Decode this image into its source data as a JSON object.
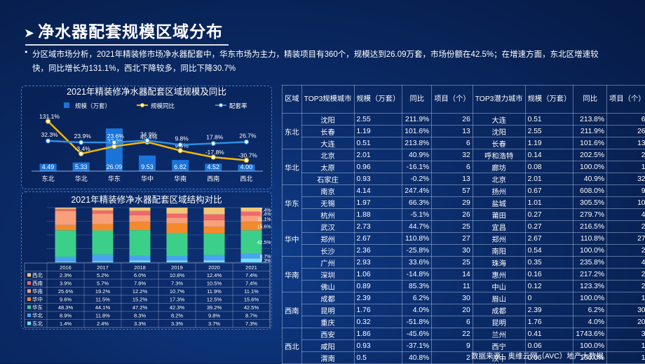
{
  "title": "净水器配套规模区域分布",
  "summary": "分区域市场分析，2021年精装修市场净水器配套中，华东市场为主力，精装项目有360个，规模达到26.09万套，市场份额在42.5%；在增速方面，东北区增速较快，同比增长为131.1%，西北下降较多，同比下降30.7%",
  "source": "数据来源：奥维云网（AVC）地产大数据",
  "chart_data": [
    {
      "type": "bar",
      "title": "2021年精装修净水器配套区域规模及同比",
      "legend": [
        "规模（万套）",
        "规模同比",
        "配套率"
      ],
      "legend_position": "top",
      "categories": [
        "东北",
        "华北",
        "华东",
        "华中",
        "华南",
        "西南",
        "西北"
      ],
      "series": [
        {
          "name": "规模（万套）",
          "type": "bar",
          "values": [
            4.49,
            5.33,
            26.09,
            9.53,
            6.82,
            4.52,
            4.0
          ],
          "labels": [
            "4.49",
            "5.33",
            "26.09",
            "9.53",
            "6.82",
            "4.52",
            "4.00"
          ],
          "color": "#1a73d9"
        },
        {
          "name": "规模同比",
          "type": "line",
          "values": [
            131.1,
            -3.4,
            27.2,
            45.4,
            9.5,
            -17.8,
            -30.7
          ],
          "labels": [
            "131.1%",
            "-3.4%",
            "27.2%",
            "45.4%",
            "9.5%",
            "-17.8%",
            "-30.7%"
          ],
          "color": "#f5b800"
        },
        {
          "name": "配套率",
          "type": "line",
          "values": [
            32.3,
            23.9,
            23.6,
            34.9,
            9.8,
            17.8,
            26.7
          ],
          "labels": [
            "32.3%",
            "23.9%",
            "23.6%",
            "34.9%",
            "9.8%",
            "17.8%",
            "26.7%"
          ],
          "color": "#2f8fe0"
        }
      ]
    },
    {
      "type": "bar",
      "stacked": "percent",
      "title": "2021年精装修净水器配套区域结构对比",
      "categories": [
        "2016",
        "2017",
        "2018",
        "2019",
        "2020",
        "2021"
      ],
      "series": [
        {
          "name": "西北",
          "color": "#f0c77a",
          "values": [
            2.3,
            5.2,
            6.0,
            10.8,
            12.4,
            7.4
          ],
          "labels": [
            "2.3%",
            "5.2%",
            "6.0%",
            "10.8%",
            "12.4%",
            "7.4%"
          ]
        },
        {
          "name": "西南",
          "color": "#f06a6a",
          "values": [
            3.9,
            5.7,
            7.8,
            7.3,
            10.5,
            7.4
          ],
          "labels": [
            "3.9%",
            "5.7%",
            "7.8%",
            "7.3%",
            "10.5%",
            "7.4%"
          ]
        },
        {
          "name": "华南",
          "color": "#f7a07a",
          "values": [
            25.6,
            19.2,
            12.2,
            10.7,
            11.9,
            11.1
          ],
          "labels": [
            "25.6%",
            "19.2%",
            "12.2%",
            "10.7%",
            "11.9%",
            "11.1%"
          ]
        },
        {
          "name": "华中",
          "color": "#f58a2c",
          "values": [
            9.6,
            11.5,
            15.2,
            17.3,
            12.5,
            15.6
          ],
          "labels": [
            "9.6%",
            "11.5%",
            "15.2%",
            "17.3%",
            "12.5%",
            "15.6%"
          ]
        },
        {
          "name": "华东",
          "color": "#3ccf8a",
          "values": [
            48.3,
            44.1,
            47.2,
            42.3,
            39.2,
            42.5
          ],
          "labels": [
            "48.3%",
            "44.1%",
            "47.2%",
            "42.3%",
            "39.2%",
            "42.5%"
          ]
        },
        {
          "name": "华北",
          "color": "#4aa3f0",
          "values": [
            8.9,
            11.8,
            8.3,
            8.2,
            9.8,
            8.7
          ],
          "labels": [
            "8.9%",
            "11.8%",
            "8.3%",
            "8.2%",
            "9.8%",
            "8.7%"
          ]
        },
        {
          "name": "东北",
          "color": "#6fe0ff",
          "values": [
            1.4,
            2.4,
            3.3,
            3.3,
            3.7,
            7.3
          ],
          "labels": [
            "1.4%",
            "2.4%",
            "3.3%",
            "3.3%",
            "3.7%",
            "7.3%"
          ]
        }
      ],
      "bar_labels_2021": [
        "7.4%",
        "7.4%",
        "11.1%",
        "15.6%",
        "42.5%",
        "8.7%",
        "7.3%"
      ]
    },
    {
      "type": "table",
      "headers": [
        "区域",
        "TOP3规模城市",
        "规模（万套）",
        "同比",
        "项目（个）",
        "TOP3潜力城市",
        "规模（万套）",
        "同比",
        "项目（个）"
      ],
      "groups": [
        {
          "region": "东北",
          "rows": [
            [
              "沈阳",
              "2.55",
              "211.9%",
              "26",
              "大连",
              "0.51",
              "213.8%",
              "6"
            ],
            [
              "长春",
              "1.19",
              "101.6%",
              "13",
              "沈阳",
              "2.55",
              "211.9%",
              "26"
            ],
            [
              "大连",
              "0.51",
              "213.8%",
              "6",
              "长春",
              "1.19",
              "101.6%",
              "13"
            ]
          ]
        },
        {
          "region": "华北",
          "rows": [
            [
              "北京",
              "2.01",
              "40.9%",
              "32",
              "呼和浩特",
              "0.14",
              "202.5%",
              "2"
            ],
            [
              "太原",
              "0.96",
              "-16.1%",
              "6",
              "廊坊",
              "0.08",
              "100.0%",
              "1"
            ],
            [
              "石家庄",
              "0.93",
              "-0.2%",
              "13",
              "北京",
              "2.01",
              "40.9%",
              "32"
            ]
          ]
        },
        {
          "region": "华东",
          "rows": [
            [
              "南京",
              "4.14",
              "247.4%",
              "57",
              "扬州",
              "0.67",
              "608.0%",
              "9"
            ],
            [
              "无锡",
              "1.97",
              "66.3%",
              "29",
              "盐城",
              "1.01",
              "305.5%",
              "10"
            ],
            [
              "杭州",
              "1.88",
              "-5.1%",
              "26",
              "莆田",
              "0.27",
              "279.7%",
              "4"
            ]
          ]
        },
        {
          "region": "华中",
          "rows": [
            [
              "武汉",
              "2.73",
              "44.7%",
              "25",
              "宜昌",
              "0.27",
              "216.5%",
              "2"
            ],
            [
              "郑州",
              "2.67",
              "110.8%",
              "27",
              "郑州",
              "2.67",
              "110.8%",
              "27"
            ],
            [
              "长沙",
              "2.36",
              "-25.8%",
              "30",
              "南阳",
              "0.54",
              "100.0%",
              "2"
            ]
          ]
        },
        {
          "region": "华南",
          "rows": [
            [
              "广州",
              "2.93",
              "33.6%",
              "25",
              "珠海",
              "0.35",
              "235.8%",
              "4"
            ],
            [
              "深圳",
              "1.06",
              "-14.8%",
              "14",
              "惠州",
              "0.16",
              "217.2%",
              "2"
            ],
            [
              "佛山",
              "0.89",
              "85.3%",
              "11",
              "中山",
              "0.12",
              "123.3%",
              "2"
            ]
          ]
        },
        {
          "region": "西南",
          "rows": [
            [
              "成都",
              "2.39",
              "6.2%",
              "30",
              "眉山",
              "0",
              "100.0%",
              "1"
            ],
            [
              "昆明",
              "1.76",
              "4.0%",
              "20",
              "成都",
              "2.39",
              "6.2%",
              "30"
            ],
            [
              "重庆",
              "0.32",
              "-51.8%",
              "6",
              "昆明",
              "1.76",
              "4.0%",
              "20"
            ]
          ]
        },
        {
          "region": "西北",
          "rows": [
            [
              "西安",
              "1.86",
              "-45.6%",
              "22",
              "兰州",
              "0.41",
              "1743.6%",
              "3"
            ],
            [
              "咸阳",
              "0.93",
              "-37.1%",
              "9",
              "西宁",
              "0.06",
              "100.0%",
              "1"
            ],
            [
              "渭南",
              "0.5",
              "40.8%",
              "2",
              "汉中",
              "0.06",
              "100.0%",
              "1"
            ]
          ]
        }
      ]
    }
  ],
  "colors": {
    "background": "#0a2a66",
    "bar_blue": "#1a73d9",
    "line_yellow": "#f5b800",
    "line_blue": "#2f8fe0"
  }
}
